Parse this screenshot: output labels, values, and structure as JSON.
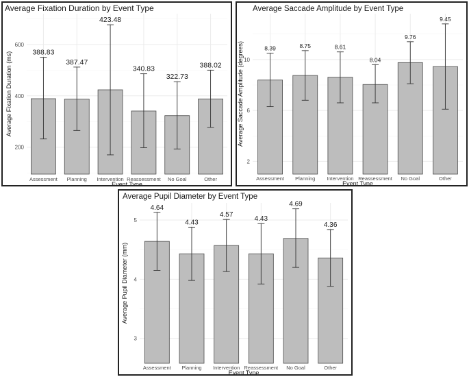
{
  "chart_data": [
    {
      "type": "bar",
      "title": "Average Fixation Duration by Event Type",
      "xlabel": "Event Type",
      "ylabel": "Average Fixation Duration (ms)",
      "categories": [
        "Assessment",
        "Planning",
        "Intervention",
        "Reassessment",
        "No Goal",
        "Other"
      ],
      "values": [
        388.83,
        387.47,
        423.48,
        340.83,
        322.73,
        388.02
      ],
      "value_labels": [
        "388.83",
        "387.47",
        "423.48",
        "340.83",
        "322.73",
        "388.02"
      ],
      "error_low": [
        232,
        265,
        170,
        198,
        193,
        277
      ],
      "error_high": [
        550,
        512,
        677,
        486,
        455,
        500
      ],
      "ylim": [
        95,
        720
      ],
      "yticks": [
        200,
        400,
        600
      ],
      "ytick_labels": [
        "200",
        "400",
        "600"
      ],
      "grid": true
    },
    {
      "type": "bar",
      "title": "Average Saccade Amplitude by Event Type",
      "xlabel": "Event Type",
      "ylabel": "Average Saccade Amplitude (degrees)",
      "categories": [
        "Assessment",
        "Planning",
        "Intervention",
        "Reassessment",
        "No Goal",
        "Other"
      ],
      "values": [
        8.39,
        8.75,
        8.61,
        8.04,
        9.76,
        9.45
      ],
      "value_labels": [
        "8.39",
        "8.75",
        "8.61",
        "8.04",
        "9.76",
        "9.45"
      ],
      "error_low": [
        6.3,
        6.8,
        6.6,
        6.6,
        8.1,
        6.1
      ],
      "error_high": [
        10.5,
        10.7,
        10.6,
        9.6,
        11.4,
        12.8
      ],
      "ylim": [
        1.0,
        13.6
      ],
      "yticks": [
        2,
        6,
        10
      ],
      "ytick_labels": [
        "2",
        "6",
        "10"
      ],
      "grid": true
    },
    {
      "type": "bar",
      "title": "Average Pupil Diameter by Event Type",
      "xlabel": "Event Type",
      "ylabel": "Average Pupil Diameter (mm)",
      "categories": [
        "Assessment",
        "Planning",
        "Intervention",
        "Reassessment",
        "No Goal",
        "Other"
      ],
      "values": [
        4.64,
        4.43,
        4.57,
        4.43,
        4.69,
        4.36
      ],
      "value_labels": [
        "4.64",
        "4.43",
        "4.57",
        "4.43",
        "4.69",
        "4.36"
      ],
      "error_low": [
        4.15,
        3.98,
        4.13,
        3.92,
        4.2,
        3.88
      ],
      "error_high": [
        5.13,
        4.88,
        5.01,
        4.94,
        5.19,
        4.84
      ],
      "ylim": [
        2.58,
        5.29
      ],
      "yticks": [
        3,
        4,
        5
      ],
      "ytick_labels": [
        "3",
        "4",
        "5"
      ],
      "grid": true
    }
  ]
}
